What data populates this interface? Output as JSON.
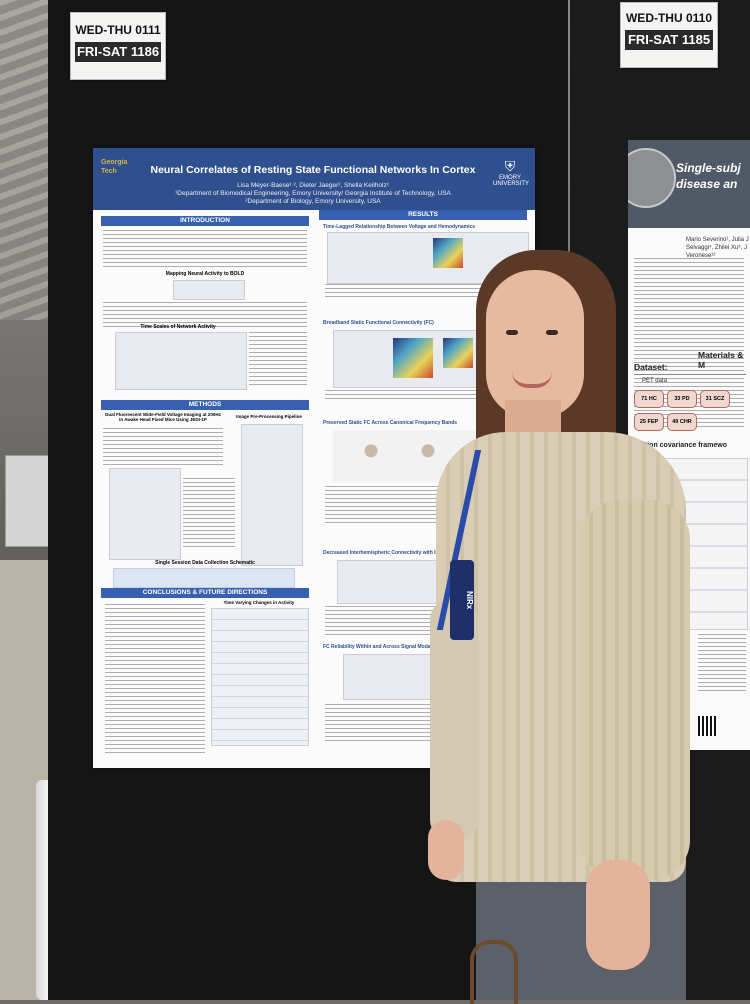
{
  "booth_tags": {
    "left": {
      "line1": "WED-THU 0111",
      "line2": "FRI-SAT 1186"
    },
    "right": {
      "line1": "WED-THU 0110",
      "line2": "FRI-SAT 1185"
    }
  },
  "main_poster": {
    "title": "Neural Correlates of Resting State Functional Networks In Cortex",
    "authors": "Lisa Meyer-Baese¹ ², Dieter Jaeger², Shella Keilholz¹",
    "affil1": "¹Department of Biomedical Engineering, Emory University/ Georgia Institute of Technology, USA",
    "affil2": "²Department of Biology, Emory University, USA",
    "logo_left": "Georgia Tech",
    "logo_right": "EMORY UNIVERSITY",
    "sections": {
      "intro": "INTRODUCTION",
      "methods": "METHODS",
      "conclusions": "CONCLUSIONS & FUTURE DIRECTIONS",
      "results": "RESULTS"
    },
    "subheads": {
      "mapping": "Mapping Neural Activity to BOLD",
      "timescales": "Time Scales of Network Activity",
      "dual": "Dual Fluorescent Wide-Field Voltage Imaging at 200Hz In Awake Head Fixed Mice Using JEDI-1P",
      "pipeline": "Image Pre-Processing Pipeline",
      "schematic": "Single Session Data Collection Schematic",
      "time_varying": "Time Varying Changes in Activity",
      "lagged": "Time-Lagged Relationship Between Voltage and Hemodynamics",
      "broadband": "Broadband Static Functional Connectivity (FC)",
      "preserved": "Preserved Static FC Across Canonical Frequency Bands",
      "decreased": "Decreased Interhemispheric Connectivity with Increasing",
      "reliability": "FC Reliability Within and Across Signal Modalities"
    }
  },
  "right_poster": {
    "title_line1": "Single-subj",
    "title_line2": "disease an",
    "authors": "Mario Severino¹, Julia J Selvaggi⁴, Zhilei Xu⁵, J Veronese¹²",
    "dataset_label": "Dataset:",
    "materials_label": "Materials & M",
    "pet_label": "PET data",
    "cohorts": [
      "71 HC",
      "33 PD",
      "31 SCZ",
      "25 FEP",
      "49 CHR"
    ],
    "framework_label": "rbation covariance framewo"
  },
  "lanyard_text": "NIRx"
}
